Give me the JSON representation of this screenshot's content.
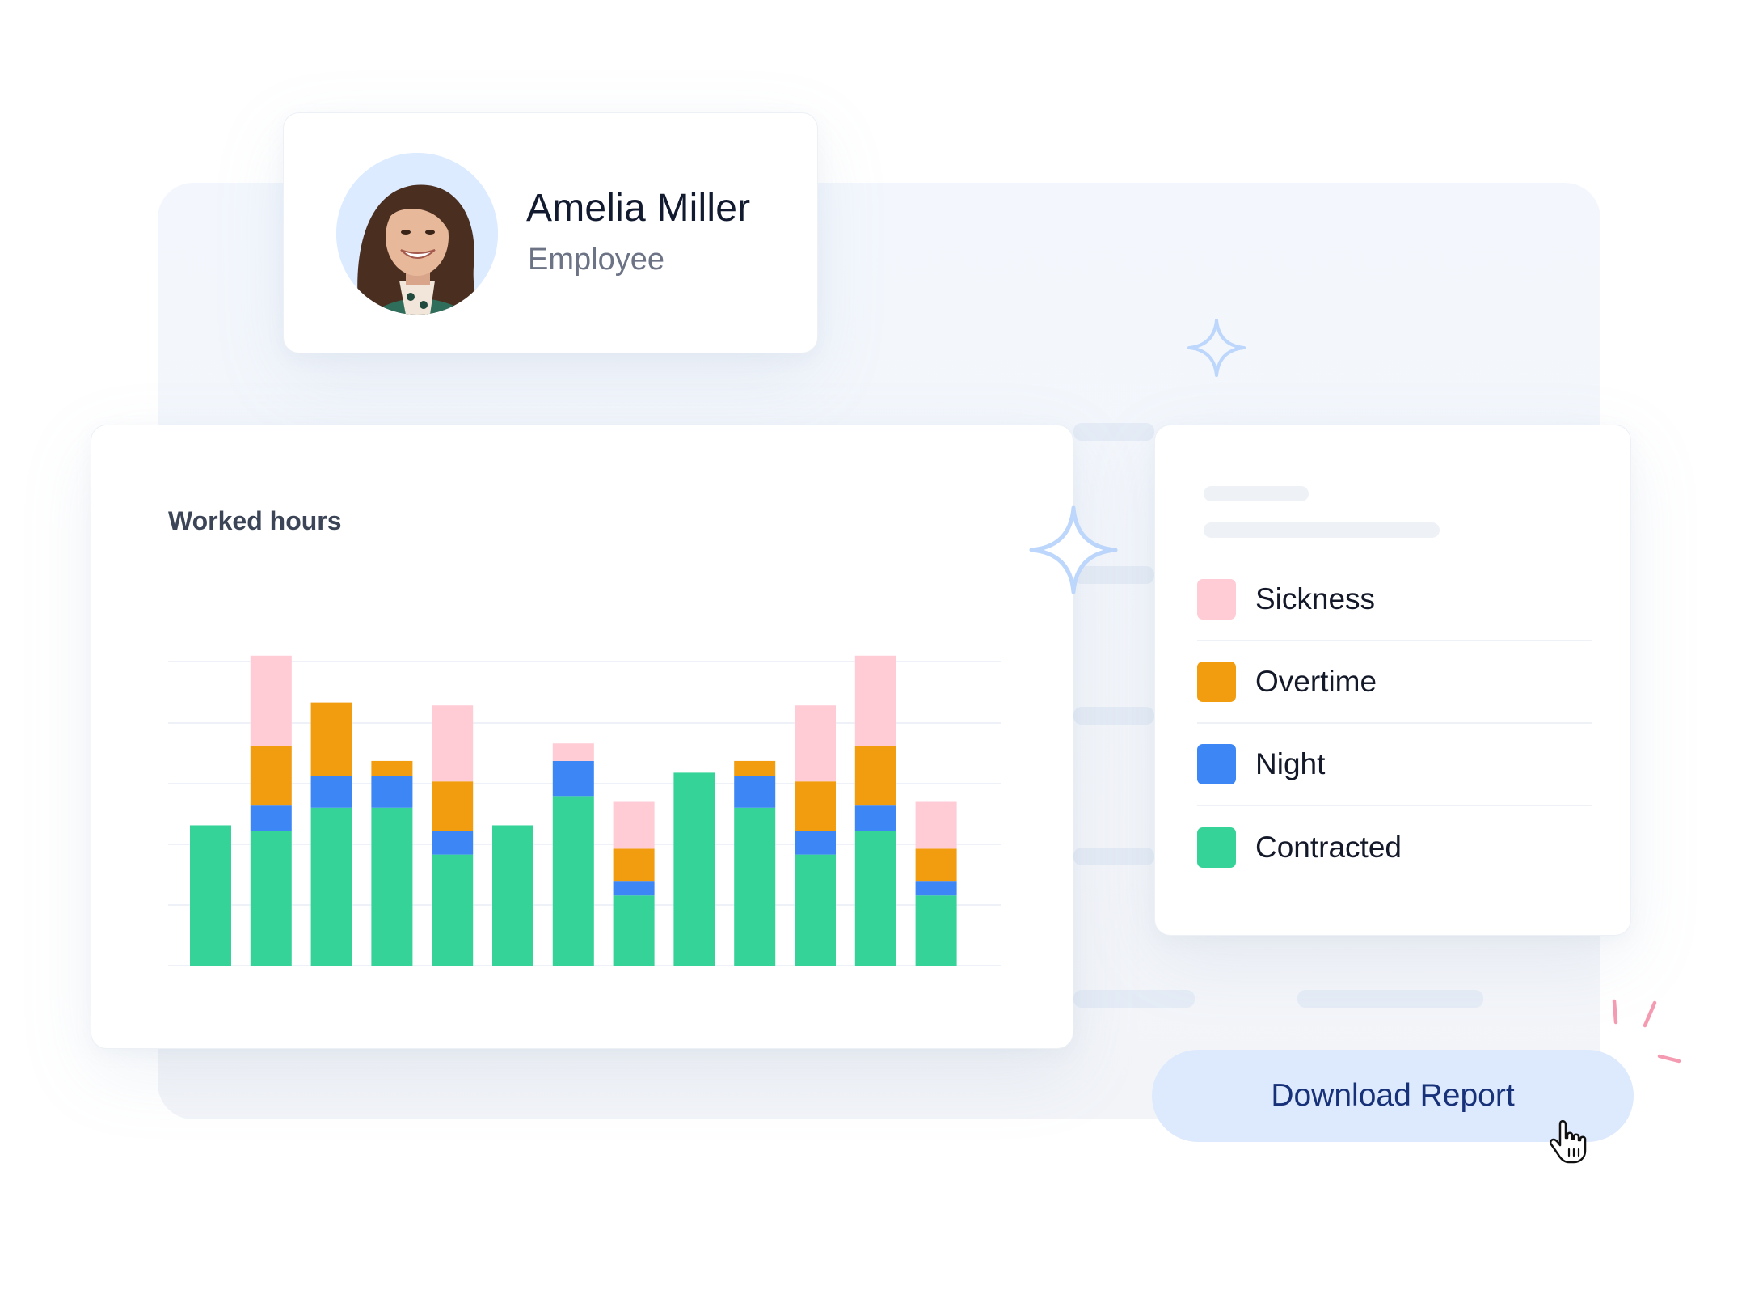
{
  "profile": {
    "name": "Amelia Miller",
    "role": "Employee",
    "avatar_icon": "employee-photo"
  },
  "chart_data": {
    "type": "bar",
    "stacked": true,
    "title": "Worked hours",
    "xlabel": "",
    "ylabel": "",
    "categories": [
      "",
      "",
      "",
      "",
      "",
      "",
      "",
      "",
      "",
      "",
      "",
      "",
      ""
    ],
    "ylim": [
      0,
      5.2
    ],
    "grid": true,
    "series": [
      {
        "name": "Contracted",
        "color": "#36d399",
        "values": [
          2.4,
          2.3,
          2.7,
          2.7,
          1.9,
          2.4,
          2.9,
          1.2,
          3.3,
          2.7,
          1.9,
          2.3,
          1.2
        ]
      },
      {
        "name": "Night",
        "color": "#3d86f5",
        "values": [
          0.0,
          0.45,
          0.55,
          0.55,
          0.4,
          0.0,
          0.6,
          0.25,
          0.0,
          0.55,
          0.4,
          0.45,
          0.25
        ]
      },
      {
        "name": "Overtime",
        "color": "#f29d0f",
        "values": [
          0.0,
          1.0,
          1.25,
          0.25,
          0.85,
          0.0,
          0.0,
          0.55,
          0.0,
          0.25,
          0.85,
          1.0,
          0.55
        ]
      },
      {
        "name": "Sickness",
        "color": "#ffcbd5",
        "values": [
          0.0,
          1.55,
          0.0,
          0.0,
          1.3,
          0.0,
          0.3,
          0.8,
          0.0,
          0.0,
          1.3,
          1.55,
          0.8
        ]
      }
    ]
  },
  "legend": [
    {
      "label": "Sickness",
      "color": "#ffcbd5"
    },
    {
      "label": "Overtime",
      "color": "#f29d0f"
    },
    {
      "label": "Night",
      "color": "#3d86f5"
    },
    {
      "label": "Contracted",
      "color": "#36d399"
    }
  ],
  "actions": {
    "download_label": "Download Report"
  },
  "colors": {
    "accent": "#18327a",
    "button_bg": "#dde9fd",
    "sparkle": "#bdd6fb",
    "confetti": "#f59bb1"
  }
}
